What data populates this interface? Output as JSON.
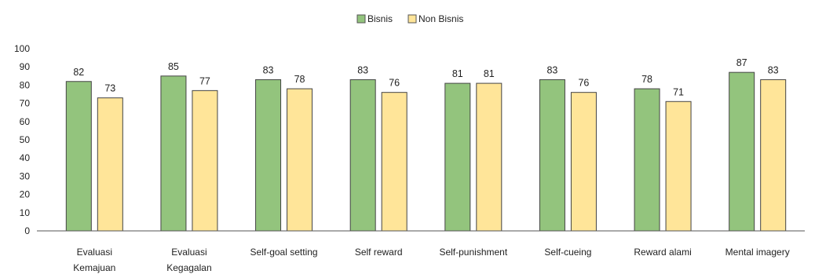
{
  "chart_data": {
    "type": "bar",
    "categories": [
      [
        "Evaluasi",
        "Kemajuan"
      ],
      [
        "Evaluasi",
        "Kegagalan"
      ],
      [
        "Self-goal setting"
      ],
      [
        "Self reward"
      ],
      [
        "Self-punishment"
      ],
      [
        "Self-cueing"
      ],
      [
        "Reward alami"
      ],
      [
        "Mental imagery"
      ]
    ],
    "series": [
      {
        "name": "Bisnis",
        "color": "#93c47d",
        "values": [
          82,
          85,
          83,
          83,
          81,
          83,
          78,
          87
        ]
      },
      {
        "name": "Non Bisnis",
        "color": "#ffe599",
        "values": [
          73,
          77,
          78,
          76,
          81,
          76,
          71,
          83
        ]
      }
    ],
    "ylim": [
      0,
      100
    ],
    "yticks": [
      0,
      10,
      20,
      30,
      40,
      50,
      60,
      70,
      80,
      90,
      100
    ],
    "grid": false,
    "legend": "top-center",
    "data_labels": true
  }
}
